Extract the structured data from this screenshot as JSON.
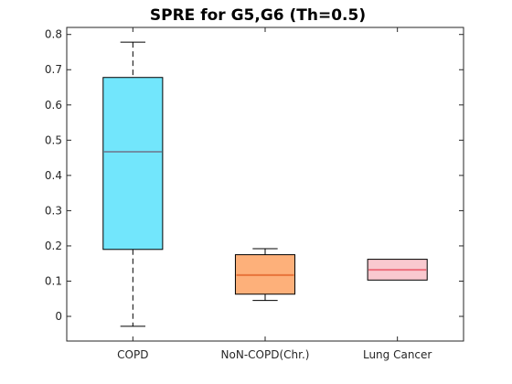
{
  "chart_data": {
    "type": "boxplot",
    "title": "SPRE  for G5,G6 (Th=0.5)",
    "xlabel": "",
    "ylabel": "",
    "ylim": [
      -0.07,
      0.82
    ],
    "yticks": [
      0,
      0.1,
      0.2,
      0.3,
      0.4,
      0.5,
      0.6,
      0.7,
      0.8
    ],
    "ytick_labels": [
      "0",
      "0.1",
      "0.2",
      "0.3",
      "0.4",
      "0.5",
      "0.6",
      "0.7",
      "0.8"
    ],
    "grid": false,
    "categories": [
      "COPD",
      "NoN-COPD(Chr.)",
      "Lung Cancer"
    ],
    "boxes": [
      {
        "min": -0.028,
        "q1": 0.19,
        "median": 0.467,
        "q3": 0.678,
        "max": 0.778,
        "fill": "#72e6fc",
        "median_color": "#6f8fa6",
        "whisker_style": "dashed"
      },
      {
        "min": 0.045,
        "q1": 0.063,
        "median": 0.117,
        "q3": 0.175,
        "max": 0.192,
        "fill": "#fdb07a",
        "median_color": "#e8743b",
        "whisker_style": "solid"
      },
      {
        "min": 0.103,
        "q1": 0.103,
        "median": 0.132,
        "q3": 0.162,
        "max": 0.162,
        "fill": "#f9c9cf",
        "median_color": "#ec6f7d",
        "whisker_style": "solid"
      }
    ]
  }
}
